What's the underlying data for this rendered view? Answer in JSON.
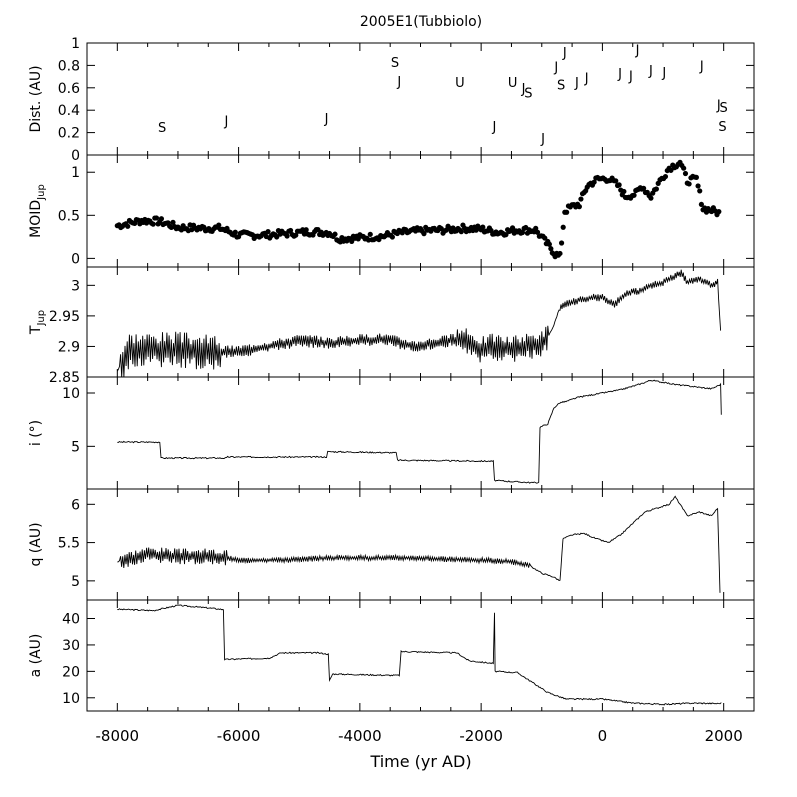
{
  "figure": {
    "title": "2005E1(Tubbiolo)",
    "xlabel": "Time (yr AD)"
  },
  "chart_data": {
    "type": "line",
    "title": "2005E1(Tubbiolo)",
    "xlabel": "Time (yr AD)",
    "xlim": [
      -8500,
      2500
    ],
    "xticks": [
      -8000,
      -6000,
      -4000,
      -2000,
      0,
      2000
    ],
    "panels": [
      {
        "id": "dist",
        "type": "scatter",
        "ylabel": "Dist. (AU)",
        "ylim": [
          0,
          1
        ],
        "yticks": [
          0,
          0.2,
          0.4,
          0.6,
          0.8,
          1
        ],
        "ytick_labels": [
          "0",
          "0.2",
          "0.4",
          "0.6",
          "0.8",
          "1"
        ],
        "encounters": [
          {
            "x": -7260,
            "y": 0.25,
            "label": "S"
          },
          {
            "x": -6200,
            "y": 0.31,
            "label": "J"
          },
          {
            "x": -4550,
            "y": 0.33,
            "label": "J"
          },
          {
            "x": -3420,
            "y": 0.83,
            "label": "S"
          },
          {
            "x": -3350,
            "y": 0.66,
            "label": "J"
          },
          {
            "x": -2350,
            "y": 0.65,
            "label": "U"
          },
          {
            "x": -1780,
            "y": 0.26,
            "label": "J"
          },
          {
            "x": -1480,
            "y": 0.65,
            "label": "U"
          },
          {
            "x": -1300,
            "y": 0.6,
            "label": "J"
          },
          {
            "x": -1220,
            "y": 0.56,
            "label": "S"
          },
          {
            "x": -980,
            "y": 0.15,
            "label": "J"
          },
          {
            "x": -760,
            "y": 0.79,
            "label": "J"
          },
          {
            "x": -620,
            "y": 0.92,
            "label": "J"
          },
          {
            "x": -680,
            "y": 0.63,
            "label": "S"
          },
          {
            "x": -420,
            "y": 0.65,
            "label": "J"
          },
          {
            "x": -260,
            "y": 0.69,
            "label": "J"
          },
          {
            "x": 290,
            "y": 0.73,
            "label": "J"
          },
          {
            "x": 470,
            "y": 0.71,
            "label": "J"
          },
          {
            "x": 580,
            "y": 0.94,
            "label": "J"
          },
          {
            "x": 800,
            "y": 0.76,
            "label": "J"
          },
          {
            "x": 1020,
            "y": 0.74,
            "label": "J"
          },
          {
            "x": 1640,
            "y": 0.8,
            "label": "J"
          },
          {
            "x": 1920,
            "y": 0.45,
            "label": "J"
          },
          {
            "x": 2000,
            "y": 0.43,
            "label": "S"
          },
          {
            "x": 1980,
            "y": 0.26,
            "label": "S"
          }
        ]
      },
      {
        "id": "moid",
        "type": "scatter",
        "ylabel": "MOID_Jup",
        "ylabel_main": "MOID",
        "ylabel_sub": "Jup",
        "ylim": [
          -0.1,
          1.2
        ],
        "yticks": [
          0,
          0.5,
          1
        ],
        "ytick_labels": [
          "0",
          "0.5",
          "1"
        ],
        "points": [
          [
            -8000,
            0.38
          ],
          [
            -7600,
            0.44
          ],
          [
            -7300,
            0.43
          ],
          [
            -7000,
            0.36
          ],
          [
            -6600,
            0.35
          ],
          [
            -6300,
            0.35
          ],
          [
            -6000,
            0.27
          ],
          [
            -5600,
            0.27
          ],
          [
            -5200,
            0.29
          ],
          [
            -4800,
            0.31
          ],
          [
            -4500,
            0.3
          ],
          [
            -4350,
            0.23
          ],
          [
            -4000,
            0.24
          ],
          [
            -3600,
            0.26
          ],
          [
            -3300,
            0.3
          ],
          [
            -3000,
            0.32
          ],
          [
            -2600,
            0.33
          ],
          [
            -2300,
            0.35
          ],
          [
            -2000,
            0.34
          ],
          [
            -1700,
            0.3
          ],
          [
            -1400,
            0.33
          ],
          [
            -1100,
            0.33
          ],
          [
            -950,
            0.2
          ],
          [
            -850,
            0.12
          ],
          [
            -780,
            0.05
          ],
          [
            -700,
            0.02
          ],
          [
            -620,
            0.55
          ],
          [
            -500,
            0.6
          ],
          [
            -380,
            0.63
          ],
          [
            -250,
            0.84
          ],
          [
            -80,
            0.92
          ],
          [
            100,
            0.93
          ],
          [
            250,
            0.85
          ],
          [
            380,
            0.72
          ],
          [
            550,
            0.75
          ],
          [
            650,
            0.84
          ],
          [
            800,
            0.72
          ],
          [
            950,
            0.9
          ],
          [
            1100,
            1.05
          ],
          [
            1280,
            1.12
          ],
          [
            1400,
            0.9
          ],
          [
            1550,
            0.92
          ],
          [
            1660,
            0.58
          ],
          [
            1800,
            0.56
          ],
          [
            1950,
            0.52
          ]
        ]
      },
      {
        "id": "tjup",
        "type": "line",
        "ylabel": "T_Jup",
        "ylabel_main": "T",
        "ylabel_sub": "Jup",
        "ylim": [
          2.85,
          3.03
        ],
        "yticks": [
          2.85,
          2.9,
          2.95,
          3
        ],
        "ytick_labels": [
          "2.85",
          "2.9",
          "2.95",
          "3"
        ],
        "points": [
          [
            -8000,
            2.86
          ],
          [
            -7800,
            2.895
          ],
          [
            -7000,
            2.895
          ],
          [
            -6500,
            2.89
          ],
          [
            -6000,
            2.892
          ],
          [
            -5500,
            2.9
          ],
          [
            -5000,
            2.91
          ],
          [
            -4500,
            2.905
          ],
          [
            -4000,
            2.91
          ],
          [
            -3600,
            2.912
          ],
          [
            -3300,
            2.905
          ],
          [
            -3100,
            2.9
          ],
          [
            -2800,
            2.905
          ],
          [
            -2500,
            2.91
          ],
          [
            -2300,
            2.91
          ],
          [
            -2000,
            2.895
          ],
          [
            -1800,
            2.9
          ],
          [
            -1500,
            2.895
          ],
          [
            -1000,
            2.905
          ],
          [
            -900,
            2.915
          ],
          [
            -800,
            2.935
          ],
          [
            -700,
            2.965
          ],
          [
            -600,
            2.97
          ],
          [
            -400,
            2.975
          ],
          [
            -200,
            2.98
          ],
          [
            0,
            2.98
          ],
          [
            200,
            2.968
          ],
          [
            350,
            2.985
          ],
          [
            500,
            2.99
          ],
          [
            600,
            2.99
          ],
          [
            800,
            3.0
          ],
          [
            1000,
            3.005
          ],
          [
            1200,
            3.015
          ],
          [
            1300,
            3.02
          ],
          [
            1400,
            3.005
          ],
          [
            1600,
            3.01
          ],
          [
            1800,
            3.0
          ],
          [
            1900,
            3.005
          ],
          [
            1950,
            2.925
          ]
        ],
        "oscillation": [
          {
            "from": -7950,
            "to": -6300,
            "amplitude": 0.02
          },
          {
            "from": -6300,
            "to": -2400,
            "amplitude": 0.007
          },
          {
            "from": -2400,
            "to": -900,
            "amplitude": 0.015
          },
          {
            "from": -700,
            "to": 1900,
            "amplitude": 0.004
          }
        ]
      },
      {
        "id": "incl",
        "type": "line",
        "ylabel": "i (°)",
        "ylim": [
          1,
          11.5
        ],
        "yticks": [
          5,
          10
        ],
        "ytick_labels": [
          "5",
          "10"
        ],
        "points": [
          [
            -8000,
            5.4
          ],
          [
            -7300,
            5.4
          ],
          [
            -7280,
            3.9
          ],
          [
            -6200,
            3.9
          ],
          [
            -6180,
            4.0
          ],
          [
            -4550,
            4.0
          ],
          [
            -4530,
            4.5
          ],
          [
            -3400,
            4.4
          ],
          [
            -3380,
            3.7
          ],
          [
            -1800,
            3.6
          ],
          [
            -1780,
            1.8
          ],
          [
            -1200,
            1.6
          ],
          [
            -1050,
            1.6
          ],
          [
            -1030,
            6.8
          ],
          [
            -900,
            7.1
          ],
          [
            -800,
            8.6
          ],
          [
            -700,
            9.1
          ],
          [
            -600,
            9.2
          ],
          [
            -400,
            9.6
          ],
          [
            -200,
            9.8
          ],
          [
            0,
            10.0
          ],
          [
            300,
            10.3
          ],
          [
            600,
            10.8
          ],
          [
            800,
            11.2
          ],
          [
            1000,
            11.0
          ],
          [
            1200,
            10.8
          ],
          [
            1500,
            10.6
          ],
          [
            1800,
            10.4
          ],
          [
            1950,
            10.8
          ],
          [
            1960,
            8.0
          ]
        ]
      },
      {
        "id": "q",
        "type": "line",
        "ylabel": "q (AU)",
        "ylim": [
          4.75,
          6.2
        ],
        "yticks": [
          5,
          5.5,
          6
        ],
        "ytick_labels": [
          "5",
          "5.5",
          "6"
        ],
        "points": [
          [
            -8000,
            5.25
          ],
          [
            -7500,
            5.35
          ],
          [
            -7000,
            5.32
          ],
          [
            -6500,
            5.32
          ],
          [
            -6200,
            5.3
          ],
          [
            -6000,
            5.27
          ],
          [
            -5500,
            5.27
          ],
          [
            -5000,
            5.28
          ],
          [
            -4500,
            5.3
          ],
          [
            -4000,
            5.3
          ],
          [
            -3500,
            5.3
          ],
          [
            -3000,
            5.3
          ],
          [
            -2500,
            5.28
          ],
          [
            -2000,
            5.27
          ],
          [
            -1500,
            5.25
          ],
          [
            -1200,
            5.2
          ],
          [
            -1000,
            5.1
          ],
          [
            -800,
            5.05
          ],
          [
            -700,
            5.0
          ],
          [
            -650,
            5.55
          ],
          [
            -500,
            5.6
          ],
          [
            -300,
            5.62
          ],
          [
            -100,
            5.55
          ],
          [
            100,
            5.5
          ],
          [
            300,
            5.6
          ],
          [
            500,
            5.75
          ],
          [
            700,
            5.9
          ],
          [
            900,
            5.95
          ],
          [
            1100,
            6.0
          ],
          [
            1200,
            6.1
          ],
          [
            1400,
            5.85
          ],
          [
            1600,
            5.9
          ],
          [
            1800,
            5.85
          ],
          [
            1900,
            5.95
          ],
          [
            1940,
            4.85
          ]
        ],
        "oscillation": [
          {
            "from": -7950,
            "to": -6200,
            "amplitude": 0.07
          },
          {
            "from": -6200,
            "to": -1200,
            "amplitude": 0.025
          }
        ]
      },
      {
        "id": "a",
        "type": "line",
        "ylabel": "a (AU)",
        "ylim": [
          5,
          47
        ],
        "yticks": [
          10,
          20,
          30,
          40
        ],
        "ytick_labels": [
          "10",
          "20",
          "30",
          "40"
        ],
        "points": [
          [
            -8000,
            43.5
          ],
          [
            -7400,
            43.0
          ],
          [
            -7000,
            45.0
          ],
          [
            -6500,
            44.0
          ],
          [
            -6300,
            43.5
          ],
          [
            -6250,
            43.5
          ],
          [
            -6230,
            24.5
          ],
          [
            -5500,
            25.0
          ],
          [
            -5300,
            27.0
          ],
          [
            -4700,
            27.0
          ],
          [
            -4520,
            26.5
          ],
          [
            -4500,
            16.5
          ],
          [
            -4450,
            19.0
          ],
          [
            -3500,
            18.5
          ],
          [
            -3350,
            18.5
          ],
          [
            -3320,
            27.5
          ],
          [
            -2400,
            27.0
          ],
          [
            -2200,
            24.0
          ],
          [
            -1800,
            23.0
          ],
          [
            -1780,
            42.0
          ],
          [
            -1770,
            20.0
          ],
          [
            -1400,
            19.5
          ],
          [
            -1100,
            15.0
          ],
          [
            -900,
            12.0
          ],
          [
            -600,
            9.5
          ],
          [
            0,
            9.5
          ],
          [
            500,
            8.0
          ],
          [
            1000,
            7.5
          ],
          [
            1500,
            8.0
          ],
          [
            1900,
            7.8
          ],
          [
            1960,
            8.0
          ]
        ]
      }
    ]
  }
}
